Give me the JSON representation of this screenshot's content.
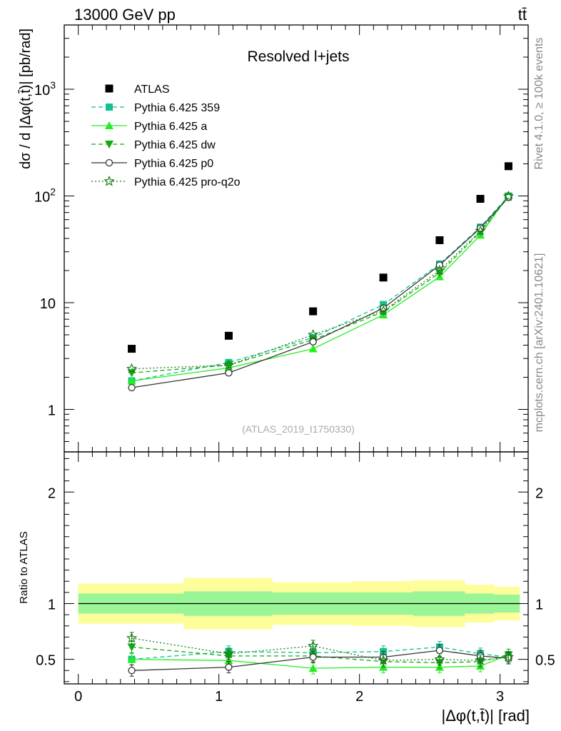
{
  "header": {
    "energy": "13000 GeV pp",
    "process": "tt̄",
    "title": "Resolved l+jets",
    "analysis": "(ATLAS_2019_I1750330)",
    "side_rivet": "Rivet 4.1.0, ≥ 100k events",
    "side_mcplots": "mcplots.cern.ch [arXiv:2401.10621]"
  },
  "chart_data": {
    "type": "line",
    "xlabel": "|Δφ(t,t̄)| [rad]",
    "ylabel": "dσ / d |Δφ(t,t̄)| [pb/rad]",
    "ratio_ylabel": "Ratio to ATLAS",
    "xlim": [
      -0.1,
      3.2
    ],
    "ylim": [
      0.4,
      4000
    ],
    "yscale": "log",
    "ratio_ylim": [
      0.28,
      2.36
    ],
    "x_ticks": [
      "0",
      "1",
      "2",
      "3"
    ],
    "y_ticks": [
      "1",
      "10",
      "10^2",
      "10^3"
    ],
    "ratio_ticks": [
      "0.5",
      "1",
      "2"
    ],
    "bin_edges": [
      0,
      0.75,
      1.38,
      1.95,
      2.38,
      2.75,
      2.96,
      3.14
    ],
    "bin_centers": [
      0.38,
      1.07,
      1.67,
      2.17,
      2.57,
      2.86,
      3.06
    ],
    "data": {
      "name": "ATLAS",
      "values": [
        3.7,
        4.9,
        8.3,
        17.2,
        38.5,
        94,
        190
      ],
      "band_inner": [
        0.09,
        0.11,
        0.1,
        0.1,
        0.11,
        0.09,
        0.08
      ],
      "band_outer": [
        0.18,
        0.23,
        0.19,
        0.2,
        0.21,
        0.17,
        0.15
      ]
    },
    "series": [
      {
        "name": "Pythia 6.425 359",
        "color": "#0fc28f",
        "dash": "6,4",
        "marker": "square",
        "values": [
          1.85,
          2.75,
          4.7,
          9.6,
          23.0,
          51,
          100
        ],
        "ratio": [
          0.5,
          0.57,
          0.56,
          0.57,
          0.61,
          0.55,
          0.52
        ]
      },
      {
        "name": "Pythia 6.425 a",
        "color": "#22ee22",
        "dash": "",
        "marker": "triangle",
        "values": [
          1.85,
          2.45,
          3.7,
          7.7,
          17.5,
          43,
          102
        ],
        "ratio": [
          0.5,
          0.49,
          0.42,
          0.43,
          0.43,
          0.44,
          0.54
        ]
      },
      {
        "name": "Pythia 6.425 dw",
        "color": "#13a813",
        "dash": "6,4",
        "marker": "triangle-down",
        "values": [
          2.2,
          2.6,
          4.5,
          8.2,
          19.0,
          46,
          98
        ],
        "ratio": [
          0.61,
          0.53,
          0.53,
          0.48,
          0.47,
          0.48,
          0.54
        ]
      },
      {
        "name": "Pythia 6.425 p0",
        "color": "#333333",
        "dash": "",
        "marker": "circle",
        "values": [
          1.6,
          2.2,
          4.3,
          8.9,
          22.5,
          50,
          97
        ],
        "ratio": [
          0.4,
          0.43,
          0.52,
          0.52,
          0.58,
          0.53,
          0.51
        ]
      },
      {
        "name": "Pythia 6.425 pro-q2o",
        "color": "#177e17",
        "dash": "2,3",
        "marker": "star",
        "values": [
          2.4,
          2.6,
          5.0,
          8.4,
          20.0,
          47,
          99
        ],
        "ratio": [
          0.69,
          0.55,
          0.62,
          0.49,
          0.5,
          0.49,
          0.52
        ]
      }
    ]
  }
}
